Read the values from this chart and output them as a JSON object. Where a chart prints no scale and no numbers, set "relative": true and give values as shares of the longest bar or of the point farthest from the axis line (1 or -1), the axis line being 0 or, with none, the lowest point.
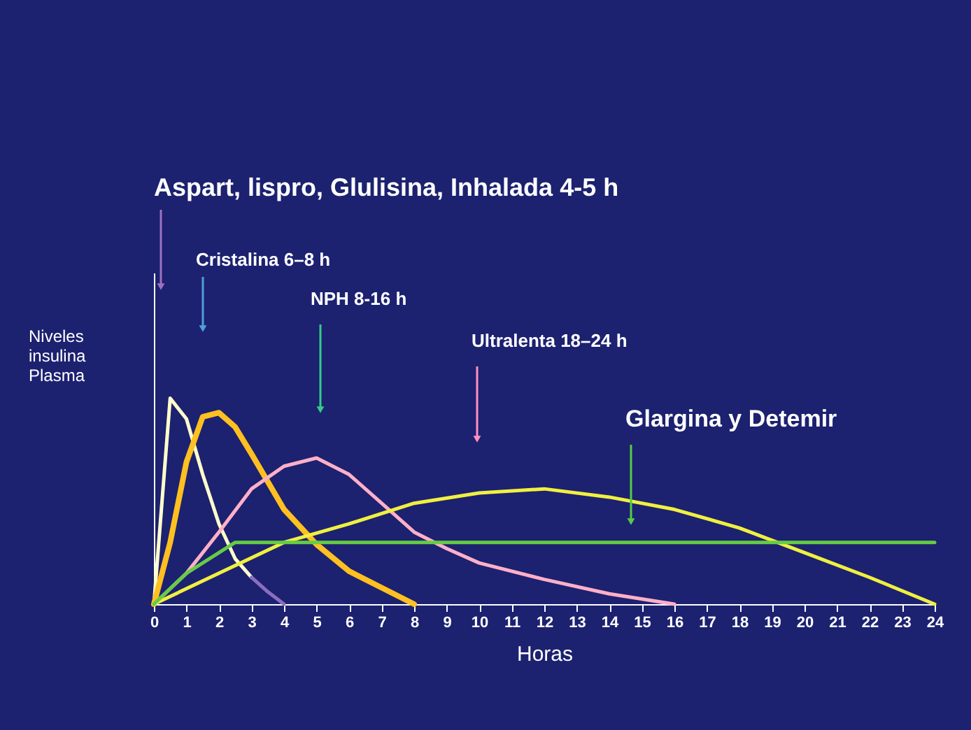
{
  "chart_data": {
    "type": "line",
    "relative": true,
    "xlabel": "Horas",
    "ylabel": "Niveles insulina Plasma",
    "xlim": [
      0,
      24
    ],
    "xticks": [
      0,
      1,
      2,
      3,
      4,
      5,
      6,
      7,
      8,
      9,
      10,
      11,
      12,
      13,
      14,
      15,
      16,
      17,
      18,
      19,
      20,
      21,
      22,
      23,
      24
    ],
    "annotations": [
      "Aspart, lispro, Glulisina, Inhalada 4-5 h",
      "Cristalina 6–8 h",
      "NPH 8-16 h",
      "Ultralenta 18–24 h",
      "Glargina y Detemir"
    ],
    "series": [
      {
        "color": "#ffffcc",
        "x": [
          0,
          0.5,
          1,
          1.5,
          2,
          2.5,
          3
        ],
        "values": [
          0,
          1.0,
          0.9,
          0.63,
          0.39,
          0.22,
          0.13
        ]
      },
      {
        "color": "#8a6fc0",
        "x": [
          3,
          3.5,
          4
        ],
        "values": [
          0.13,
          0.06,
          0
        ]
      },
      {
        "color": "#ffc020",
        "x": [
          0,
          0.5,
          1,
          1.5,
          2,
          2.5,
          3,
          4,
          5,
          6,
          7,
          8
        ],
        "values": [
          0,
          0.3,
          0.69,
          0.91,
          0.93,
          0.86,
          0.73,
          0.46,
          0.29,
          0.16,
          0.08,
          0
        ]
      },
      {
        "color": "#ffb0c8",
        "x": [
          0,
          1,
          2,
          3,
          4,
          5,
          6,
          7,
          8,
          9,
          10,
          12,
          14,
          16
        ],
        "values": [
          0,
          0.15,
          0.35,
          0.56,
          0.67,
          0.71,
          0.63,
          0.49,
          0.35,
          0.27,
          0.2,
          0.12,
          0.05,
          0
        ]
      },
      {
        "color": "#f0f040",
        "x": [
          0,
          2,
          4,
          6,
          8,
          10,
          12,
          14,
          16,
          18,
          20,
          22,
          24
        ],
        "values": [
          0,
          0.15,
          0.3,
          0.39,
          0.49,
          0.54,
          0.56,
          0.52,
          0.46,
          0.37,
          0.25,
          0.13,
          0
        ]
      },
      {
        "color": "#66cc44",
        "x": [
          0,
          1,
          2,
          2.5,
          24
        ],
        "values": [
          0,
          0.15,
          0.25,
          0.3,
          0.3
        ]
      }
    ]
  }
}
